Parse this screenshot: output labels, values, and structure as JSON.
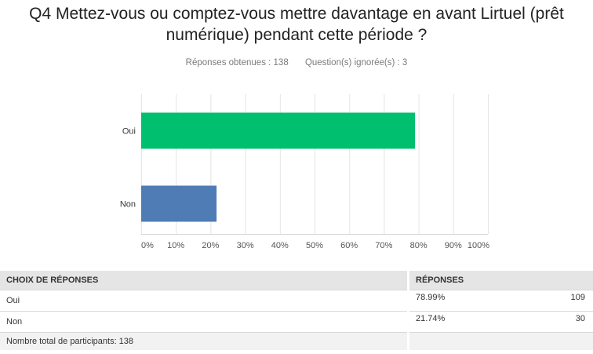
{
  "title": "Q4 Mettez-vous ou comptez-vous mettre davantage en avant Lirtuel (prêt numérique) pendant cette période ?",
  "stats": {
    "answered": "Réponses obtenues : 138",
    "skipped": "Question(s) ignorée(s) : 3"
  },
  "chart_data": {
    "type": "bar",
    "orientation": "horizontal",
    "categories": [
      "Oui",
      "Non"
    ],
    "values": [
      78.99,
      21.74
    ],
    "colors": [
      "#00bf6f",
      "#507cb6"
    ],
    "xlim": [
      0,
      100
    ],
    "ticks": [
      "0%",
      "10%",
      "20%",
      "30%",
      "40%",
      "50%",
      "60%",
      "70%",
      "80%",
      "90%",
      "100%"
    ],
    "grid": true
  },
  "table": {
    "header_choice": "CHOIX DE RÉPONSES",
    "header_responses": "RÉPONSES",
    "rows": [
      {
        "choice": "Oui",
        "percent": "78.99%",
        "count": "109"
      },
      {
        "choice": "Non",
        "percent": "21.74%",
        "count": "30"
      }
    ],
    "total": "Nombre total de participants: 138"
  }
}
